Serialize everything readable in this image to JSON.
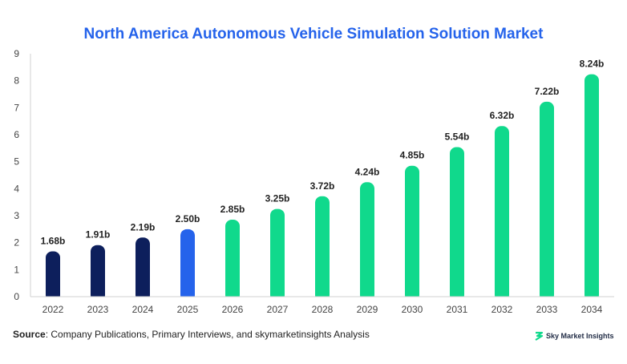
{
  "title": "North America Autonomous Vehicle Simulation Solution Market",
  "source": {
    "label": "Source",
    "text": ": Company Publications, Primary Interviews, and skymarketinsights Analysis"
  },
  "brand": {
    "name": "Sky Market Insights"
  },
  "colors": {
    "title": "#2563eb",
    "historic": "#0d1f5c",
    "base": "#2563eb",
    "forecast": "#10d98c"
  },
  "chart_data": {
    "type": "bar",
    "categories": [
      "2022",
      "2023",
      "2024",
      "2025",
      "2026",
      "2027",
      "2028",
      "2029",
      "2030",
      "2031",
      "2032",
      "2033",
      "2034"
    ],
    "values": [
      1.68,
      1.91,
      2.19,
      2.5,
      2.85,
      3.25,
      3.72,
      4.24,
      4.85,
      5.54,
      6.32,
      7.22,
      8.24
    ],
    "data_labels": [
      "1.68b",
      "1.91b",
      "2.19b",
      "2.50b",
      "2.85b",
      "3.25b",
      "3.72b",
      "4.24b",
      "4.85b",
      "5.54b",
      "6.32b",
      "7.22b",
      "8.24b"
    ],
    "bar_groups": [
      "historic",
      "historic",
      "historic",
      "base",
      "forecast",
      "forecast",
      "forecast",
      "forecast",
      "forecast",
      "forecast",
      "forecast",
      "forecast",
      "forecast"
    ],
    "title": "North America Autonomous Vehicle Simulation Solution Market",
    "xlabel": "",
    "ylabel": "",
    "ylim": [
      0,
      9
    ],
    "yticks": [
      "0",
      "1",
      "2",
      "3",
      "4",
      "5",
      "6",
      "7",
      "8",
      "9"
    ],
    "grid": false,
    "legend": "none"
  }
}
